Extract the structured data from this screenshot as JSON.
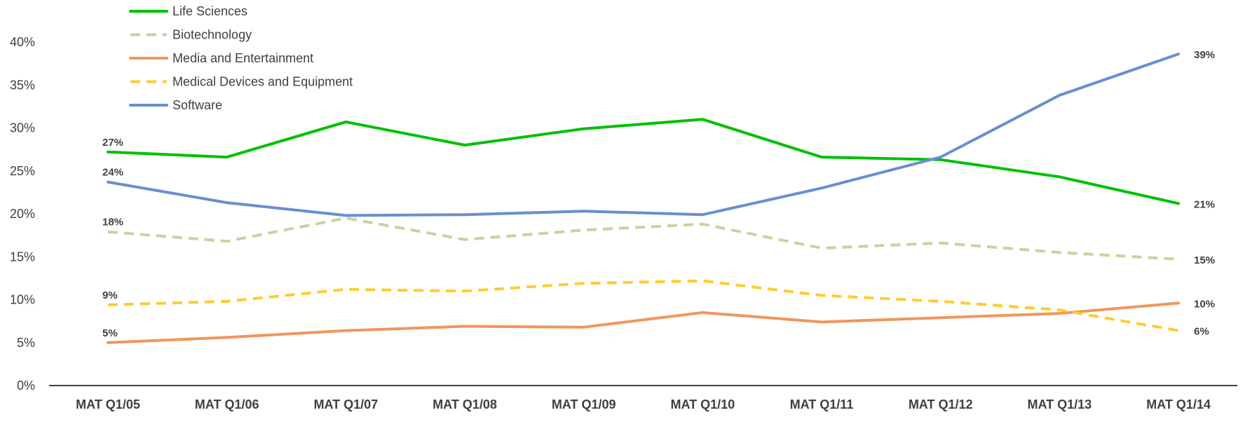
{
  "chart_data": {
    "type": "line",
    "title": "",
    "xlabel": "",
    "ylabel": "",
    "categories": [
      "MAT Q1/05",
      "MAT Q1/06",
      "MAT Q1/07",
      "MAT Q1/08",
      "MAT Q1/09",
      "MAT Q1/10",
      "MAT Q1/11",
      "MAT Q1/12",
      "MAT Q1/13",
      "MAT Q1/14"
    ],
    "ylim": [
      0,
      40
    ],
    "y_ticks": [
      0,
      5,
      10,
      15,
      20,
      25,
      30,
      35,
      40
    ],
    "y_tick_labels": [
      "0%",
      "5%",
      "10%",
      "15%",
      "20%",
      "25%",
      "30%",
      "35%",
      "40%"
    ],
    "grid": false,
    "legend_placement": "top-left",
    "series": [
      {
        "name": "Life Sciences",
        "color": "#00c000",
        "dash": "solid",
        "values": [
          27.2,
          26.6,
          30.7,
          28.0,
          29.9,
          31.0,
          26.6,
          26.3,
          24.3,
          21.2
        ],
        "start_label": "27%",
        "end_label": "21%"
      },
      {
        "name": "Biotechnology",
        "color": "#cdd09c",
        "dash": "dashed",
        "values": [
          17.9,
          16.8,
          19.5,
          17.0,
          18.1,
          18.8,
          16.0,
          16.6,
          15.5,
          14.7
        ],
        "start_label": "18%",
        "end_label": "15%"
      },
      {
        "name": "Media and Entertainment",
        "color": "#f0965a",
        "dash": "solid",
        "values": [
          5.0,
          5.6,
          6.4,
          6.9,
          6.8,
          8.5,
          7.4,
          7.9,
          8.4,
          9.6
        ],
        "start_label": "5%",
        "end_label": "10%"
      },
      {
        "name": "Medical Devices and Equipment",
        "color": "#ffcc30",
        "dash": "dashed",
        "values": [
          9.4,
          9.8,
          11.2,
          11.0,
          11.9,
          12.2,
          10.5,
          9.8,
          8.8,
          6.4
        ],
        "start_label": "9%",
        "end_label": "6%"
      },
      {
        "name": "Software",
        "color": "#6a8ed0",
        "dash": "solid",
        "values": [
          23.7,
          21.3,
          19.8,
          19.9,
          20.3,
          19.9,
          23.0,
          26.6,
          33.8,
          38.6
        ],
        "start_label": "24%",
        "end_label": "39%"
      }
    ]
  }
}
